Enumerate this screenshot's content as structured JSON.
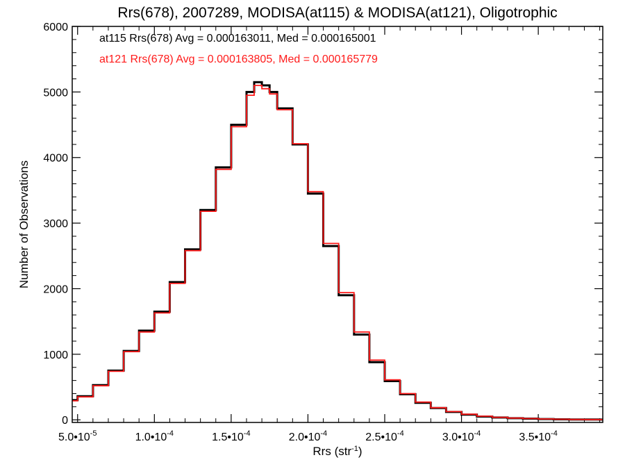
{
  "chart_data": {
    "type": "line",
    "title": "Rrs(678), 2007289, MODISA(at115) & MODISA(at121), Oligotrophic",
    "xlabel": "Rrs (str",
    "xlabel_sup": "-1",
    "xlabel_close": ")",
    "ylabel": "Number of Observations",
    "xlim": [
      4.65e-05,
      0.000392
    ],
    "ylim": [
      -40,
      6000
    ],
    "xticks": [
      {
        "value": 5e-05,
        "mant": "5.0•10",
        "exp": "-5"
      },
      {
        "value": 0.0001,
        "mant": "1.0•10",
        "exp": "-4"
      },
      {
        "value": 0.00015,
        "mant": "1.5•10",
        "exp": "-4"
      },
      {
        "value": 0.0002,
        "mant": "2.0•10",
        "exp": "-4"
      },
      {
        "value": 0.00025,
        "mant": "2.5•10",
        "exp": "-4"
      },
      {
        "value": 0.0003,
        "mant": "3.0•10",
        "exp": "-4"
      },
      {
        "value": 0.00035,
        "mant": "3.5•10",
        "exp": "-4"
      }
    ],
    "yticks": [
      0,
      1000,
      2000,
      3000,
      4000,
      5000,
      6000
    ],
    "legend": [
      {
        "text": "at115 Rrs(678) Avg = 0.000163011, Med = 0.000165001",
        "color": "#000000"
      },
      {
        "text": "at121 Rrs(678) Avg = 0.000163805, Med = 0.000165779",
        "color": "#ff1a1a"
      }
    ],
    "series": [
      {
        "color": "#000000",
        "x": [
          4.65e-05,
          5e-05,
          6e-05,
          7e-05,
          8e-05,
          9e-05,
          0.0001,
          0.00011,
          0.00012,
          0.00013,
          0.00014,
          0.00015,
          0.00016,
          0.000165,
          0.00017,
          0.000175,
          0.00018,
          0.00019,
          0.0002,
          0.00021,
          0.00022,
          0.00023,
          0.00024,
          0.00025,
          0.00026,
          0.00027,
          0.00028,
          0.00029,
          0.0003,
          0.00031,
          0.00032,
          0.00033,
          0.00034,
          0.00035,
          0.00036,
          0.00037,
          0.00038,
          0.00039
        ],
        "y": [
          300,
          360,
          530,
          750,
          1050,
          1360,
          1650,
          2100,
          2600,
          3200,
          3850,
          4500,
          5000,
          5150,
          5100,
          5000,
          4750,
          4200,
          3450,
          2650,
          1900,
          1300,
          880,
          590,
          390,
          260,
          180,
          120,
          80,
          50,
          35,
          25,
          18,
          12,
          8,
          5,
          4,
          3
        ]
      },
      {
        "color": "#ff1a1a",
        "x": [
          4.65e-05,
          5e-05,
          6e-05,
          7e-05,
          8e-05,
          9e-05,
          0.0001,
          0.00011,
          0.00012,
          0.00013,
          0.00014,
          0.00015,
          0.00016,
          0.000165,
          0.00017,
          0.000175,
          0.00018,
          0.00019,
          0.0002,
          0.00021,
          0.00022,
          0.00023,
          0.00024,
          0.00025,
          0.00026,
          0.00027,
          0.00028,
          0.00029,
          0.0003,
          0.00031,
          0.00032,
          0.00033,
          0.00034,
          0.00035,
          0.00036,
          0.00037,
          0.00038,
          0.00039
        ],
        "y": [
          290,
          350,
          520,
          740,
          1040,
          1340,
          1630,
          2080,
          2580,
          3180,
          3820,
          4470,
          4950,
          5100,
          5050,
          4970,
          4730,
          4210,
          3480,
          2690,
          1940,
          1340,
          910,
          610,
          400,
          270,
          185,
          125,
          85,
          55,
          38,
          27,
          19,
          13,
          9,
          6,
          4,
          3
        ]
      }
    ]
  }
}
